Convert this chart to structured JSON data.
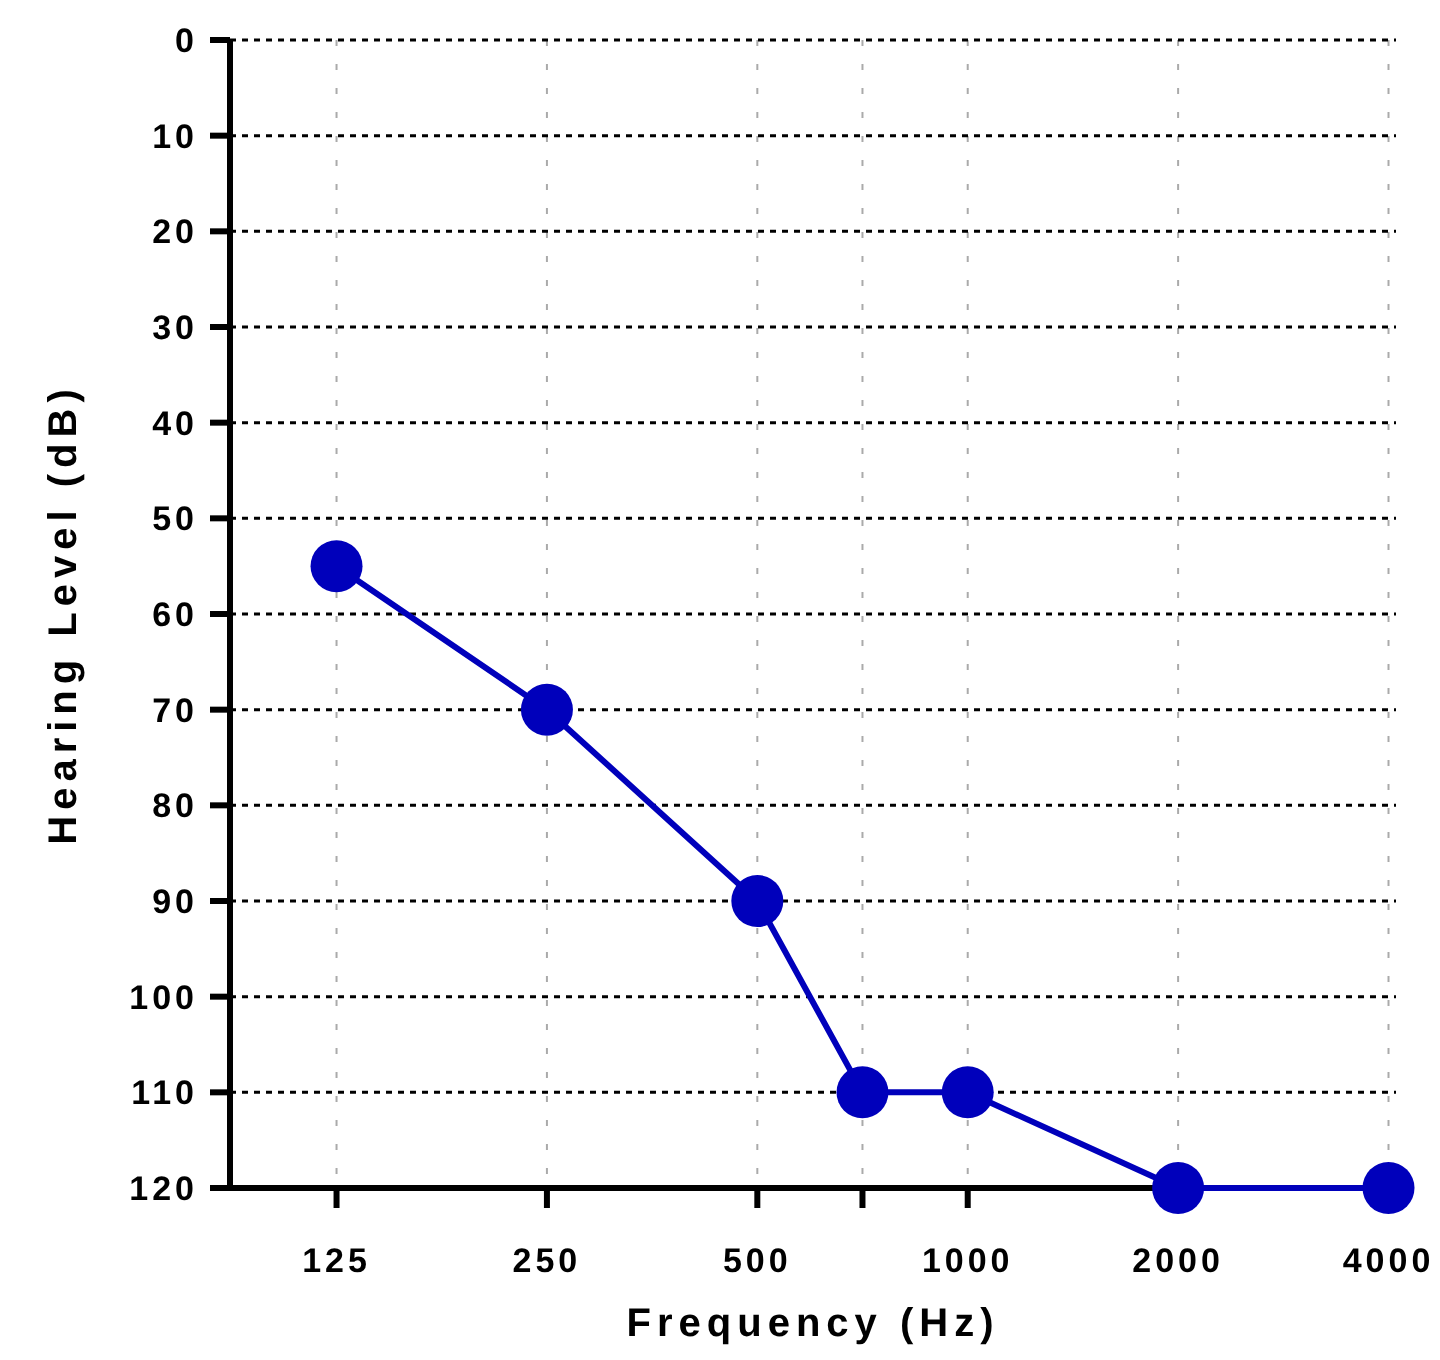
{
  "chart_data": {
    "type": "line",
    "xlabel": "Frequency (Hz)",
    "ylabel": "Hearing Level (dB)",
    "log": "x",
    "x": [
      125,
      250,
      500,
      707,
      1000,
      2000,
      4000
    ],
    "series": [
      {
        "color": "#0000bb",
        "values": [
          55,
          70,
          90,
          110,
          110,
          120,
          120
        ]
      }
    ],
    "xlim": [
      88,
      4100
    ],
    "xticks": [
      125,
      250,
      500,
      {
        "value": 707,
        "label": null
      },
      1000,
      2000,
      4000
    ],
    "ylim": [
      120,
      0
    ],
    "yticks": [
      0,
      10,
      20,
      30,
      40,
      50,
      60,
      70,
      80,
      90,
      100,
      110,
      120
    ],
    "grid": true,
    "marker": "circle",
    "line_style": "solid"
  }
}
